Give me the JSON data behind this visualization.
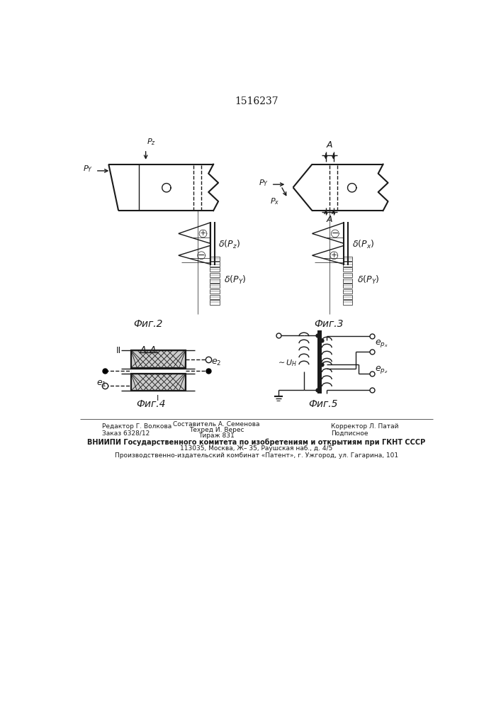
{
  "title": "1516237",
  "fig2_label": "Фиг.2",
  "fig3_label": "Фиг.3",
  "fig4_label": "Фиг.4",
  "fig5_label": "Фиг.5",
  "footer_vniipi": "ВНИИПИ Государственного комитета по изобретениям и открытиям при ГКНТ СССР",
  "footer_addr": "113035, Москва, Ж– 35, Раушская наб., д. 4/5",
  "footer_prod": "Производственно-издательский комбинат «Патент», г. Ужгород, ул. Гагарина, 101",
  "editor": "Редактор Г. Волкова",
  "order": "Заказ 6328/12",
  "composer": "Составитель А. Семенова",
  "techred": "Техред И. Верес",
  "tirazh": "Тираж 831",
  "corrector": "Корректор Л. Патай",
  "podpis": "Подписное",
  "bg_color": "#ffffff",
  "line_color": "#1a1a1a"
}
